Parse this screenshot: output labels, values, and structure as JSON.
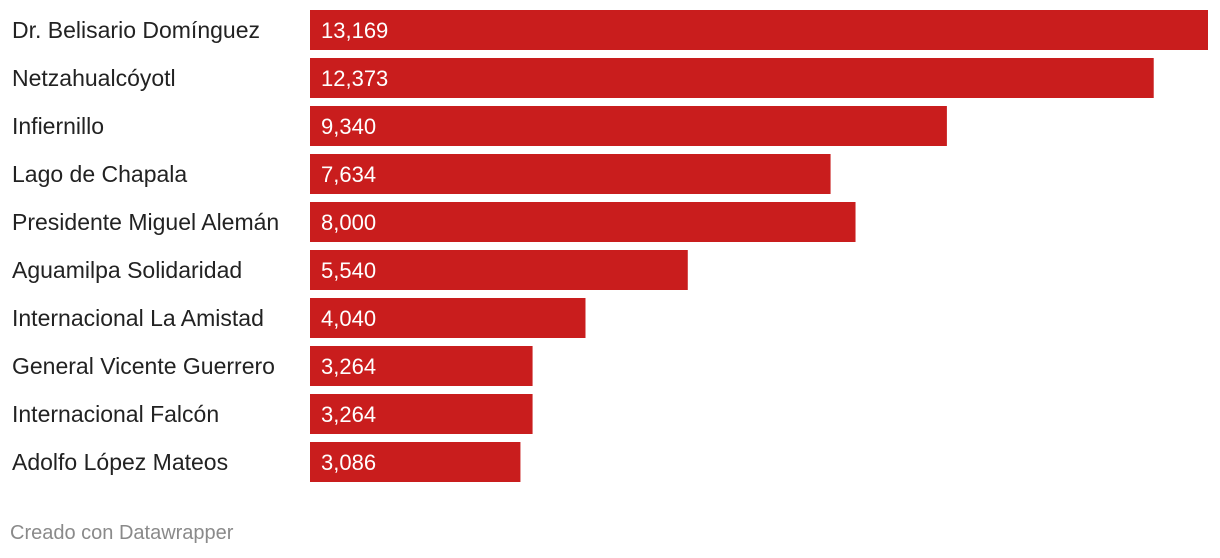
{
  "chart_data": {
    "type": "bar",
    "orientation": "horizontal",
    "categories": [
      "Dr. Belisario Domínguez",
      "Netzahualcóyotl",
      "Infiernillo",
      "Lago de Chapala",
      "Presidente Miguel Alemán",
      "Aguamilpa Solidaridad",
      "Internacional La Amistad",
      "General Vicente Guerrero",
      "Internacional Falcón",
      "Adolfo López Mateos"
    ],
    "values": [
      13169,
      12373,
      9340,
      7634,
      8000,
      5540,
      4040,
      3264,
      3264,
      3086
    ],
    "value_labels": [
      "13,169",
      "12,373",
      "9,340",
      "7,634",
      "8,000",
      "5,540",
      "4,040",
      "3,264",
      "3,264",
      "3,086"
    ],
    "title": "",
    "xlabel": "",
    "ylabel": "",
    "xlim": [
      0,
      13169
    ],
    "grid": false,
    "legend": "none",
    "bar_color": "#c91d1d"
  },
  "footer": {
    "credit": "Creado con Datawrapper"
  }
}
